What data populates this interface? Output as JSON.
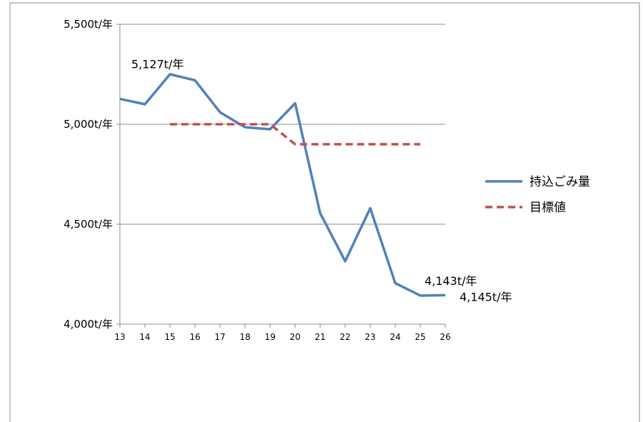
{
  "chart_data": {
    "type": "line",
    "x": [
      "13",
      "14",
      "15",
      "16",
      "17",
      "18",
      "19",
      "20",
      "21",
      "22",
      "23",
      "24",
      "25",
      "26"
    ],
    "ylim": [
      4000,
      5500
    ],
    "yticks": [
      {
        "value": 5500,
        "label": "5,500t/年"
      },
      {
        "value": 5000,
        "label": "5,000t/年"
      },
      {
        "value": 4500,
        "label": "4,500t/年"
      },
      {
        "value": 4000,
        "label": "4,000t/年"
      }
    ],
    "grid": "horizontal",
    "legend_position": "right",
    "series": [
      {
        "name": "持込ごみ量",
        "color": "#4f81bd",
        "style": "solid",
        "values": [
          5127,
          5100,
          5250,
          5220,
          5060,
          4985,
          4975,
          5105,
          4555,
          4315,
          4580,
          4205,
          4143,
          4145
        ]
      },
      {
        "name": "目標値",
        "color": "#c0504d",
        "style": "dashed",
        "values": [
          null,
          null,
          5000,
          5000,
          5000,
          5000,
          5000,
          4900,
          4900,
          4900,
          4900,
          4900,
          4900,
          null
        ]
      }
    ],
    "annotations": [
      {
        "text": "5,127t/年",
        "x": "13"
      },
      {
        "text": "4,143t/年",
        "x": "25"
      },
      {
        "text": "4,145t/年",
        "x": "26"
      }
    ]
  }
}
